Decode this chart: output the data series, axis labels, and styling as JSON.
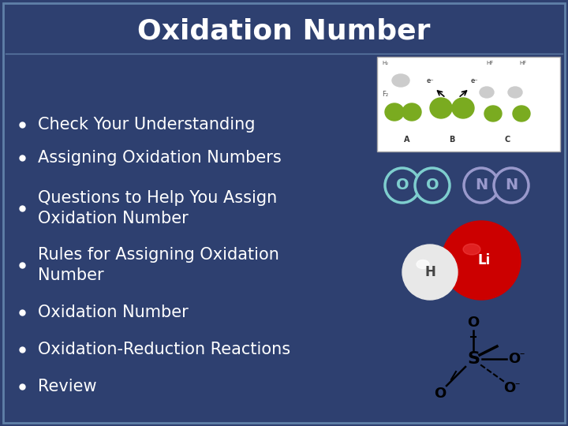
{
  "background_color": "#2E4070",
  "border_color": "#6080A8",
  "title": "Oxidation Number",
  "title_color": "#FFFFFF",
  "title_fontsize": 26,
  "title_fontweight": "bold",
  "bullet_color": "#FFFFFF",
  "bullet_fontsize": 15,
  "bullet_positions": [
    [
      490,
      "Review"
    ],
    [
      443,
      "Oxidation-Reduction Reactions"
    ],
    [
      396,
      "Oxidation Number"
    ],
    [
      336,
      "Rules for Assigning Oxidation\nNumber"
    ],
    [
      264,
      "Questions to Help You Assign\nOxidation Number"
    ],
    [
      200,
      "Assigning Oxidation Numbers"
    ],
    [
      158,
      "Check Your Understanding"
    ]
  ]
}
